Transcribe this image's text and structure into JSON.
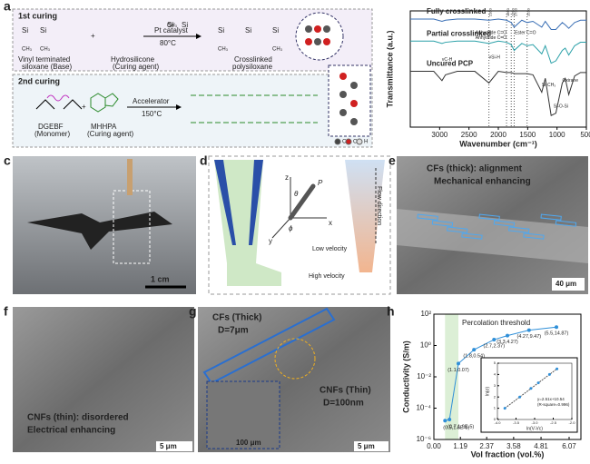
{
  "chart_data": [
    {
      "type": "line",
      "panel": "b",
      "xlabel": "Wavenumber (cm⁻¹)",
      "ylabel": "Transmittance (a.u.)",
      "x": [
        3500,
        3300,
        3100,
        2960,
        2900,
        2700,
        2400,
        2160,
        2000,
        1860,
        1780,
        1730,
        1600,
        1510,
        1410,
        1260,
        1200,
        1100,
        1020,
        910,
        860,
        800,
        700,
        600,
        500
      ],
      "xlim": [
        3500,
        500
      ],
      "xticks": [
        3000,
        2500,
        2000,
        1500,
        1000,
        500
      ],
      "ylim": [
        0,
        100
      ],
      "series": [
        {
          "name": "Fully crosslinked",
          "color": "#3a6fb5",
          "values": [
            93,
            93,
            93,
            91,
            92,
            93,
            93,
            92,
            93,
            92,
            90,
            86,
            92,
            90,
            91,
            86,
            91,
            84,
            84,
            90,
            88,
            85,
            90,
            92,
            92
          ]
        },
        {
          "name": "Partial crosslinked",
          "color": "#2aa0a8",
          "values": [
            74,
            74,
            74,
            72,
            73,
            74,
            74,
            72,
            74,
            73,
            71,
            66,
            72,
            70,
            71,
            63,
            70,
            55,
            57,
            66,
            68,
            62,
            70,
            73,
            73
          ]
        },
        {
          "name": "Uncured PCP",
          "color": "#333333",
          "values": [
            48,
            48,
            48,
            40,
            45,
            48,
            48,
            38,
            48,
            47,
            47,
            46,
            46,
            46,
            45,
            30,
            42,
            10,
            12,
            38,
            42,
            28,
            44,
            47,
            47
          ]
        }
      ],
      "peak_markers": [
        2160,
        1860,
        1780,
        1730,
        1510
      ],
      "annotations": [
        "νC-H",
        "νSi-H",
        "Si-CH₃",
        "Si-O-Si",
        "Oxirane",
        "Anhydride C=O",
        "Anhydride C=O",
        "Ester C=O"
      ]
    },
    {
      "type": "scatter",
      "panel": "h",
      "xlabel": "Vol fraction (vol.%)",
      "ylabel": "Conductivity (S/m)",
      "log_y": true,
      "color": "#2f8fd8",
      "x": [
        0.5,
        0.7,
        1.1,
        1.8,
        2.7,
        3.3,
        4.27,
        5.5
      ],
      "values": [
        1.6e-05,
        1.9e-05,
        0.07,
        0.54,
        2.37,
        4.27,
        9.47,
        14.87
      ],
      "value_labels": [
        "(0.5,1.6E-5)",
        "(0.7,1.9E-5)",
        "(1.1,0.07)",
        "(1.8,0.54)",
        "(2.7,2.37)",
        "(3.3,4.27)",
        "(4.27,9.47)",
        "(5.5,14.87)"
      ],
      "xlim": [
        0,
        6.6
      ],
      "xticks": [
        {
          "value": 0,
          "label": "0.00"
        },
        {
          "value": 1.19,
          "label": "1.19"
        },
        {
          "value": 2.37,
          "label": "2.37"
        },
        {
          "value": 3.58,
          "label": "3.58"
        },
        {
          "value": 4.81,
          "label": "4.81"
        },
        {
          "value": 6.07,
          "label": "6.07"
        }
      ],
      "ylim": [
        1e-06,
        100
      ],
      "yticks": [
        {
          "value": 1e-06,
          "label": "10⁻⁶"
        },
        {
          "value": 0.0001,
          "label": "10⁻⁴"
        },
        {
          "value": 0.01,
          "label": "10⁻²"
        },
        {
          "value": 1,
          "label": "10⁰"
        },
        {
          "value": 100,
          "label": "10²"
        }
      ],
      "annotation": "Percolation threshold"
    },
    {
      "type": "scatter",
      "panel": "h-inset",
      "xlabel": "ln(V-Vc)",
      "ylabel": "ln(σ)",
      "color": "#2f8fd8",
      "x": [
        -3.8,
        -3.4,
        -3.1,
        -2.9,
        -2.6,
        -2.4
      ],
      "values": [
        1.0,
        2.0,
        2.76,
        3.26,
        4.0,
        4.5
      ],
      "xlim": [
        -4,
        -2
      ],
      "xticks": [
        {
          "value": -4,
          "label": "-4.0"
        },
        {
          "value": -3.5,
          "label": "-3.5"
        },
        {
          "value": -3,
          "label": "-3.0"
        },
        {
          "value": -2.5,
          "label": "-2.5"
        },
        {
          "value": -2,
          "label": "-2.0"
        }
      ],
      "ylim": [
        0,
        5
      ],
      "yticks": [
        0,
        1,
        2,
        3,
        4,
        5
      ],
      "fit": "y=2.51x+10.54",
      "fit_note": "(R-square=0.996)"
    }
  ],
  "figure": {
    "a": {
      "label": "a",
      "first_curing": "1st curing",
      "second_curing": "2nd curing",
      "base": [
        "Vinyl terminated",
        "siloxane (Base)"
      ],
      "hydro": [
        "Hydrosilicone",
        "(Curing agent)"
      ],
      "catalyst": "Pt catalyst",
      "temp1": "80°C",
      "product1": [
        "Crosslinked",
        "polysiloxane"
      ],
      "dgebf": [
        "DGEBF",
        "(Monomer)"
      ],
      "mhhpa": [
        "MHHPA",
        "(Curing agent)"
      ],
      "accelerator": "Accelerator",
      "temp2": "150°C",
      "plus": "+",
      "si": "Si",
      "ch3": "CH₃",
      "atoms": [
        "C",
        "O",
        "H"
      ]
    },
    "c": {
      "label": "c",
      "scale": "1 cm"
    },
    "d": {
      "label": "d",
      "axes": [
        "z",
        "x",
        "y"
      ],
      "theta": "θ",
      "phi": "ϕ",
      "p": "P",
      "flow": "Flow direction",
      "low": "Low velocity",
      "high": "High velocity"
    },
    "e": {
      "label": "e",
      "title": [
        "CFs (thick): alignment",
        "Mechanical enhancing"
      ],
      "scale": "40 μm"
    },
    "f": {
      "label": "f",
      "title": [
        "CNFs (thin): disordered",
        "Electrical enhancing"
      ],
      "scale": "5 μm"
    },
    "g": {
      "label": "g",
      "cf": [
        "CFs (Thick)",
        "D=7μm"
      ],
      "cnf": [
        "CNFs (Thin)",
        "D=100nm"
      ],
      "inset_scale": "100 μm",
      "scale": "5 μm"
    },
    "h": {
      "label": "h"
    }
  }
}
